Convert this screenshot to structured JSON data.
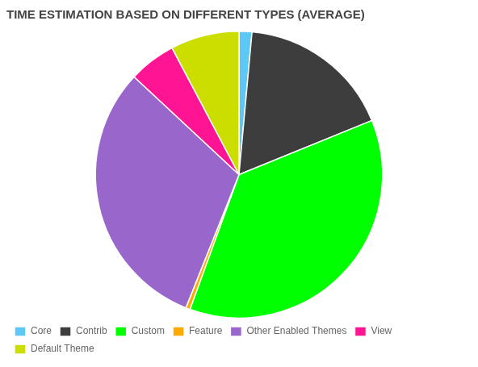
{
  "chart_data": {
    "type": "pie",
    "title": "TIME ESTIMATION BASED ON DIFFERENT TYPES (AVERAGE)",
    "categories": [
      "Core",
      "Contrib",
      "Custom",
      "Feature",
      "Other Enabled Themes",
      "View",
      "Default Theme"
    ],
    "values": [
      1.5,
      18.0,
      38.0,
      0.5,
      32.0,
      5.5,
      8.0
    ],
    "colors": [
      "#5bc8f5",
      "#3d3d3d",
      "#00ff00",
      "#ffaa00",
      "#9966cc",
      "#ff1493",
      "#ccdd00"
    ],
    "legend": "bottom"
  }
}
